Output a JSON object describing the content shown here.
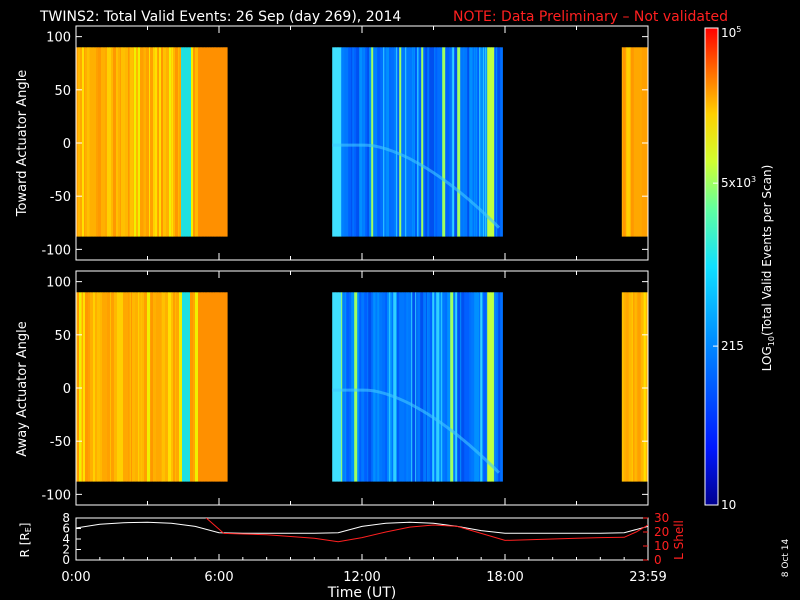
{
  "title": {
    "main": "TWINS2: Total Valid Events: 26 Sep (day 269), 2014",
    "note": "NOTE: Data Preliminary – Not validated"
  },
  "stamp": "8 Oct 14",
  "colors": {
    "background": "#000000",
    "axes": "#ffffff",
    "note": "#ff2020",
    "r_line": "#ffffff",
    "lshell_line": "#ff2020"
  },
  "chart_data": [
    {
      "type": "heatmap",
      "ylabel": "Toward Actuator Angle",
      "ylim": [
        -110,
        110
      ],
      "yticks": [
        100,
        50,
        0,
        -50,
        -100
      ],
      "data_extent_deg": [
        -88,
        90
      ],
      "x_range_hours": [
        0,
        24
      ],
      "data_intervals_hours": [
        [
          0.0,
          6.35
        ],
        [
          10.75,
          17.9
        ],
        [
          22.9,
          24.0
        ]
      ]
    },
    {
      "type": "heatmap",
      "ylabel": "Away Actuator Angle",
      "ylim": [
        -110,
        110
      ],
      "yticks": [
        100,
        50,
        0,
        -50,
        -100
      ],
      "data_extent_deg": [
        -88,
        90
      ],
      "x_range_hours": [
        0,
        24
      ],
      "data_intervals_hours": [
        [
          0.0,
          6.35
        ],
        [
          10.75,
          17.9
        ],
        [
          22.9,
          24.0
        ]
      ]
    },
    {
      "type": "line",
      "xlabel": "Time (UT)",
      "xtick_labels": [
        "0:00",
        "6:00",
        "12:00",
        "18:00",
        "23:59"
      ],
      "xtick_hours": [
        0,
        6,
        12,
        18,
        24
      ],
      "left_axis": {
        "label": "R [Re]",
        "ylim": [
          0,
          8
        ],
        "yticks": [
          0,
          2,
          4,
          6,
          8
        ]
      },
      "right_axis": {
        "label": "L Shell",
        "ylim": [
          0,
          30
        ],
        "yticks": [
          0,
          10,
          20,
          30
        ]
      },
      "series": [
        {
          "axis": "left",
          "x": [
            0,
            1,
            2,
            3,
            4,
            5,
            6,
            7,
            8,
            9,
            10,
            11,
            12,
            13,
            14,
            15,
            16,
            17,
            18,
            19,
            20,
            21,
            22,
            23,
            24
          ],
          "y": [
            6.1,
            6.8,
            7.1,
            7.2,
            7.0,
            6.4,
            5.2,
            5.1,
            5.1,
            5.1,
            5.1,
            5.2,
            6.4,
            7.0,
            7.2,
            7.0,
            6.4,
            5.6,
            5.1,
            5.1,
            5.1,
            5.1,
            5.1,
            5.2,
            6.4
          ]
        },
        {
          "axis": "right",
          "x": [
            0,
            0.5,
            5.2,
            6.2,
            8,
            10,
            11,
            12,
            13,
            14,
            15,
            16,
            17,
            18,
            19,
            20,
            21,
            22,
            23,
            23.5,
            24
          ],
          "y": [
            30,
            34,
            34,
            19,
            18,
            15.5,
            13,
            16,
            20,
            23.5,
            25,
            24,
            19,
            14,
            14.4,
            15,
            15.5,
            16,
            16.2,
            20,
            25
          ]
        }
      ]
    }
  ],
  "colorbar": {
    "label": "LOG10(Total Valid Events per Scan)",
    "ticks": [
      {
        "base": "10",
        "exp": "5",
        "value": 100000
      },
      {
        "base": "5x10",
        "exp": "3",
        "value": 5000
      },
      {
        "base": "215",
        "exp": "",
        "value": 215
      },
      {
        "base": "10",
        "exp": "",
        "value": 10
      }
    ],
    "range": [
      10,
      100000
    ],
    "log": true
  }
}
